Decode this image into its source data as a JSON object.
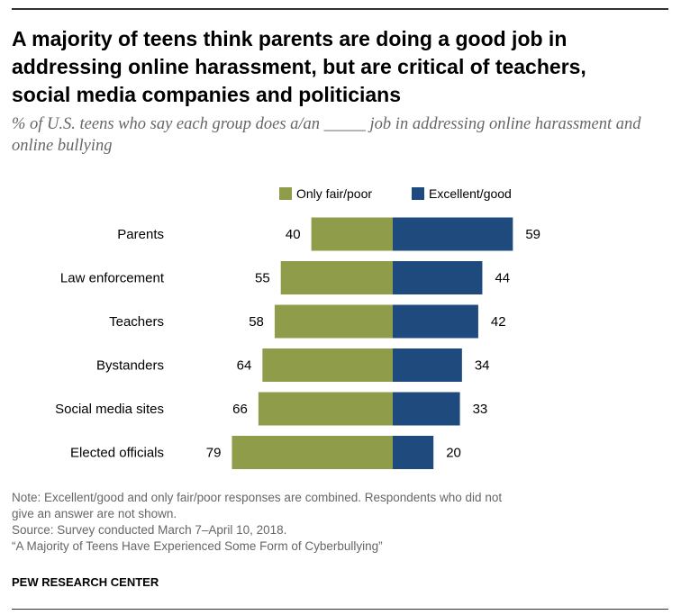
{
  "title": "A majority of teens think parents are doing a good job in addressing online harassment, but are critical of teachers, social media companies and politicians",
  "subtitle": "% of U.S. teens who say each group does a/an _____ job in addressing online harassment and online bullying",
  "notes": {
    "note_line1": "Note: Excellent/good and only fair/poor responses are combined. Respondents who did not",
    "note_line2": "give an answer are not shown.",
    "source": "Source: Survey conducted March 7–April 10, 2018.",
    "report": "“A Majority of Teens Have Experienced Some Form of Cyberbullying”"
  },
  "credit": "PEW RESEARCH CENTER",
  "colors": {
    "fair_poor": "#8f9c4a",
    "excellent_good": "#1f4a7e",
    "rule": "#333333"
  },
  "chart_data": {
    "type": "bar",
    "orientation": "horizontal-diverging",
    "categories": [
      "Parents",
      "Law enforcement",
      "Teachers",
      "Bystanders",
      "Social media sites",
      "Elected officials"
    ],
    "series": [
      {
        "name": "Only fair/poor",
        "values": [
          40,
          55,
          58,
          64,
          66,
          79
        ],
        "color": "#8f9c4a",
        "side": "left"
      },
      {
        "name": "Excellent/good",
        "values": [
          59,
          44,
          42,
          34,
          33,
          20
        ],
        "color": "#1f4a7e",
        "side": "right"
      }
    ],
    "legend": "top",
    "grid": false
  }
}
